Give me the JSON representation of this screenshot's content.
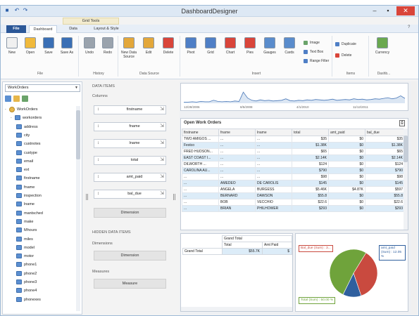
{
  "window": {
    "title": "DashboardDesigner",
    "context_tab_header": "Grid Tools",
    "controls": {
      "minimize": "–",
      "maximize": "▪",
      "close": "✕"
    },
    "help_glyph": "?"
  },
  "tabs": [
    {
      "label": "File"
    },
    {
      "label": "Dashboard"
    },
    {
      "label": "Data"
    },
    {
      "label": "Layout & Style"
    }
  ],
  "ribbon": {
    "file": [
      {
        "label": "New",
        "icon": "new-icon",
        "color": "#f0f0f0"
      },
      {
        "label": "Open",
        "icon": "folder-open-icon",
        "color": "#f0b93b"
      },
      {
        "label": "Save",
        "icon": "save-icon",
        "color": "#3a6fb5"
      },
      {
        "label": "Save As",
        "icon": "save-as-icon",
        "color": "#3a6fb5"
      }
    ],
    "history": [
      {
        "label": "Undo",
        "icon": "undo-icon",
        "color": "#9aa3ad"
      },
      {
        "label": "Redo",
        "icon": "redo-icon",
        "color": "#9aa3ad"
      }
    ],
    "datasource": [
      {
        "label": "New Data Source",
        "icon": "new-data-source-icon",
        "color": "#e3a73a"
      },
      {
        "label": "Edit",
        "icon": "edit-icon",
        "color": "#e3a73a"
      },
      {
        "label": "Delete",
        "icon": "delete-icon",
        "color": "#d9453a"
      }
    ],
    "insert": [
      {
        "label": "Pivot",
        "icon": "pivot-icon",
        "color": "#4f7fc6"
      },
      {
        "label": "Grid",
        "icon": "grid-icon",
        "color": "#4f7fc6"
      },
      {
        "label": "Chart",
        "icon": "chart-icon",
        "color": "#d9453a"
      },
      {
        "label": "Pies",
        "icon": "pie-icon",
        "color": "#d9453a"
      },
      {
        "label": "Gauges",
        "icon": "gauge-icon",
        "color": "#5a8ccc"
      },
      {
        "label": "Cards",
        "icon": "cards-icon",
        "color": "#5a8ccc"
      }
    ],
    "insert_small": [
      {
        "label": "Image",
        "icon": "image-icon",
        "color": "#6aa36a"
      },
      {
        "label": "Text Box",
        "icon": "text-box-icon",
        "color": "#4f7fc6"
      },
      {
        "label": "Range Filter",
        "icon": "range-filter-icon",
        "color": "#4f7fc6"
      }
    ],
    "items": [
      {
        "label": "Duplicate",
        "icon": "duplicate-icon",
        "color": "#4f7fc6"
      },
      {
        "label": "Delete",
        "icon": "delete-item-icon",
        "color": "#d9453a"
      }
    ],
    "dashboard": [
      {
        "label": "Currency",
        "icon": "currency-icon",
        "color": "#6aa84f"
      }
    ],
    "groups": {
      "file": "File",
      "history": "History",
      "datasource": "Data Source",
      "insert": "Insert",
      "items": "Items",
      "dashboard": "Dashb..."
    }
  },
  "datasource_panel": {
    "selected": "WorkOrders",
    "tree": [
      {
        "label": "WorkOrders",
        "level": 0,
        "kind": "db",
        "toggle": "-"
      },
      {
        "label": "workorders",
        "level": 1,
        "kind": "table",
        "toggle": "-"
      },
      {
        "label": "address",
        "level": 2,
        "kind": "field"
      },
      {
        "label": "city",
        "level": 2,
        "kind": "field"
      },
      {
        "label": "custnotes",
        "level": 2,
        "kind": "field"
      },
      {
        "label": "custype",
        "level": 2,
        "kind": "field"
      },
      {
        "label": "email",
        "level": 2,
        "kind": "field"
      },
      {
        "label": "ext",
        "level": 2,
        "kind": "field"
      },
      {
        "label": "firstname",
        "level": 2,
        "kind": "field"
      },
      {
        "label": "fname",
        "level": 2,
        "kind": "field"
      },
      {
        "label": "inspection",
        "level": 2,
        "kind": "field"
      },
      {
        "label": "lname",
        "level": 2,
        "kind": "field"
      },
      {
        "label": "mantsched",
        "level": 2,
        "kind": "field"
      },
      {
        "label": "make",
        "level": 2,
        "kind": "field"
      },
      {
        "label": "Mhours",
        "level": 2,
        "kind": "field"
      },
      {
        "label": "miles",
        "level": 2,
        "kind": "field"
      },
      {
        "label": "model",
        "level": 2,
        "kind": "field"
      },
      {
        "label": "motor",
        "level": 2,
        "kind": "field"
      },
      {
        "label": "phone1",
        "level": 2,
        "kind": "field"
      },
      {
        "label": "phone2",
        "level": 2,
        "kind": "field"
      },
      {
        "label": "phone3",
        "level": 2,
        "kind": "field"
      },
      {
        "label": "phone4",
        "level": 2,
        "kind": "field"
      },
      {
        "label": "phonexes",
        "level": 2,
        "kind": "field"
      }
    ]
  },
  "items_panel": {
    "data_items": "DATA ITEMS",
    "columns": "Columns",
    "dimensions": [
      {
        "name": "firstname"
      },
      {
        "name": "fname"
      },
      {
        "name": "lname"
      },
      {
        "name": "total"
      },
      {
        "name": "amt_paid"
      },
      {
        "name": "bal_due"
      }
    ],
    "column_holder": "Dimension",
    "hidden": "HIDDEN DATA ITEMS",
    "dimensions_label": "Dimensions",
    "hidden_dimension_holder": "Dimension",
    "measures_label": "Measures",
    "hidden_measure_holder": "Measure",
    "sort_glyph": "↕",
    "cfg_glyph": "⇲"
  },
  "range_filter": {
    "ticks": [
      "12/28/2006",
      "8/5/2008",
      "4/1/2010",
      "11/12/2011"
    ],
    "y_max": 100,
    "series": [
      3,
      3,
      4,
      3,
      5,
      4,
      4,
      8,
      5,
      4,
      5,
      4,
      6,
      5,
      30,
      14,
      8,
      6,
      9,
      7,
      8,
      6,
      7,
      8,
      12,
      7,
      6,
      8,
      7,
      9,
      8,
      10,
      9,
      8,
      9,
      11,
      8,
      9,
      10,
      9,
      12,
      10,
      11,
      9,
      10,
      12,
      11,
      13,
      15,
      12,
      14,
      20,
      13
    ]
  },
  "grid": {
    "caption": "Open Work Orders",
    "export_glyph": "⎙",
    "columns": [
      "firstname",
      "fname",
      "lname",
      "total",
      "amt_paid",
      "bal_due"
    ],
    "rows": [
      [
        "TWO AMIGOS ...",
        "...",
        "...",
        "$35",
        "$0",
        "$35"
      ],
      [
        "Festco",
        "...",
        "...",
        "$1.38K",
        "$0",
        "$1.38K"
      ],
      [
        "FRED HUDSON...",
        "...",
        "...",
        "$65",
        "$0",
        "$65"
      ],
      [
        "EAST COAST I...",
        "...",
        "...",
        "$2.14K",
        "$0",
        "$2.14K"
      ],
      [
        "DILWORTH ...",
        "...",
        "...",
        "$124",
        "$0",
        "$124"
      ],
      [
        "CAROLINA AU...",
        "...",
        "...",
        "$790",
        "$0",
        "$790"
      ],
      [
        "...",
        "...",
        "...",
        "$98",
        "$0",
        "$98"
      ],
      [
        "...",
        "AMEDEO",
        "DE CAROLIS",
        "$145",
        "$0",
        "$145"
      ],
      [
        "...",
        "ANGELA",
        "BURGESS",
        "$5.46K",
        "$4.87K",
        "$597"
      ],
      [
        "...",
        "BERNARD",
        "DAWSON",
        "$55.8",
        "$0",
        "$55.8"
      ],
      [
        "...",
        "BOB",
        "VECCHIO",
        "$22.6",
        "$0",
        "$22.6"
      ],
      [
        "...",
        "BRIAN",
        "PHILHOWER",
        "$293",
        "$0",
        "$293"
      ]
    ]
  },
  "pivot": {
    "header": "Grand Total",
    "measures": [
      "Total",
      "Amt Paid"
    ],
    "row_label": "Grand Total",
    "values": [
      "$55.7K",
      "$"
    ]
  },
  "pie": {
    "slices": [
      {
        "label": "Bal_due (Sum) : 3...",
        "value": 35,
        "color": "#c94a3f"
      },
      {
        "label": "amt_paid (Sum) : 12.05 %",
        "value": 12.05,
        "color": "#2f5f9e"
      },
      {
        "label": "Total (Sum) : 50.00 %",
        "value": 50,
        "color": "#6fa33b"
      }
    ]
  }
}
